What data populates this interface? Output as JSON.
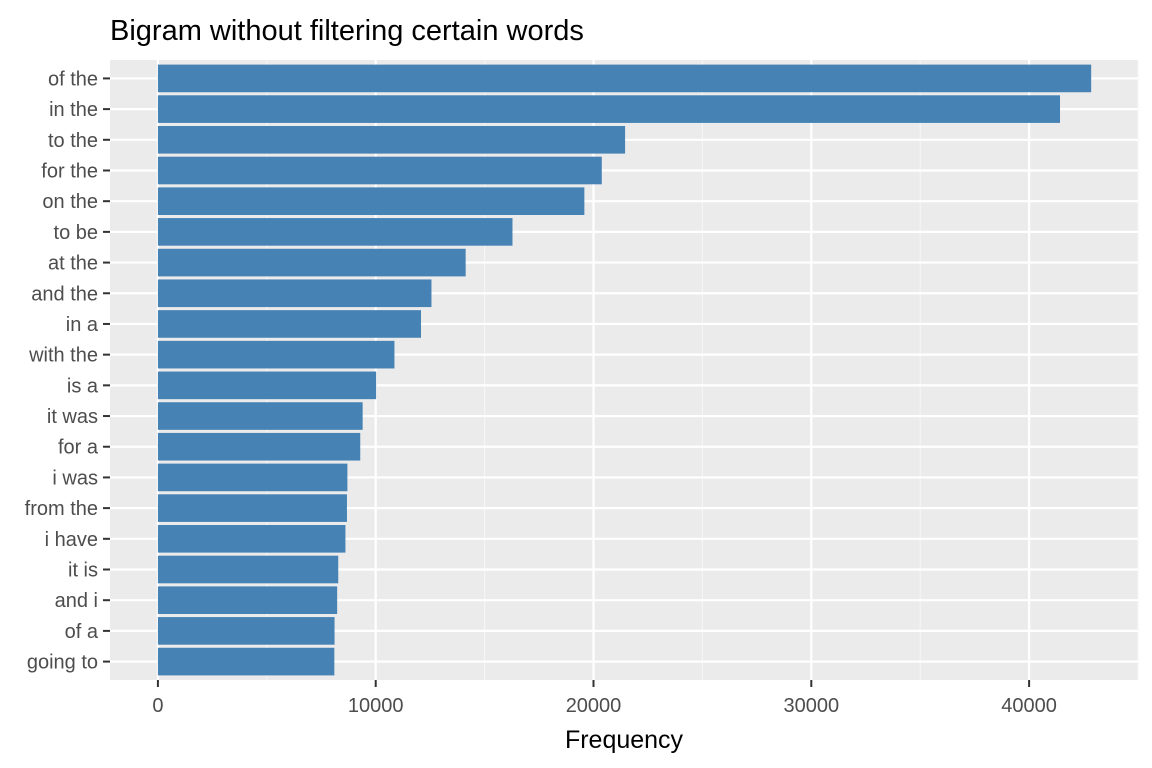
{
  "chart_data": {
    "type": "bar",
    "orientation": "horizontal",
    "title": "Bigram without filtering certain words",
    "xlabel": "Frequency",
    "ylabel": "",
    "categories": [
      "of the",
      "in the",
      "to the",
      "for the",
      "on the",
      "to be",
      "at the",
      "and the",
      "in a",
      "with the",
      "is a",
      "it was",
      "for a",
      "i was",
      "from the",
      "i have",
      "it is",
      "and i",
      "of a",
      "going to"
    ],
    "values": [
      42850,
      41420,
      21450,
      20380,
      19580,
      16280,
      14130,
      12560,
      12080,
      10860,
      10020,
      9400,
      9290,
      8700,
      8680,
      8610,
      8280,
      8230,
      8110,
      8100
    ],
    "xlim": [
      -2200,
      45000
    ],
    "xticks": [
      0,
      10000,
      20000,
      30000,
      40000
    ],
    "xtick_labels": [
      "0",
      "10000",
      "20000",
      "30000",
      "40000"
    ],
    "grid": true,
    "legend": "none",
    "colors": {
      "bar": "#4682B4",
      "panel": "#EBEBEB",
      "grid_major": "#FFFFFF",
      "grid_minor": "#F5F5F5",
      "tick_text": "#4D4D4D",
      "axis_title": "#000000"
    }
  }
}
